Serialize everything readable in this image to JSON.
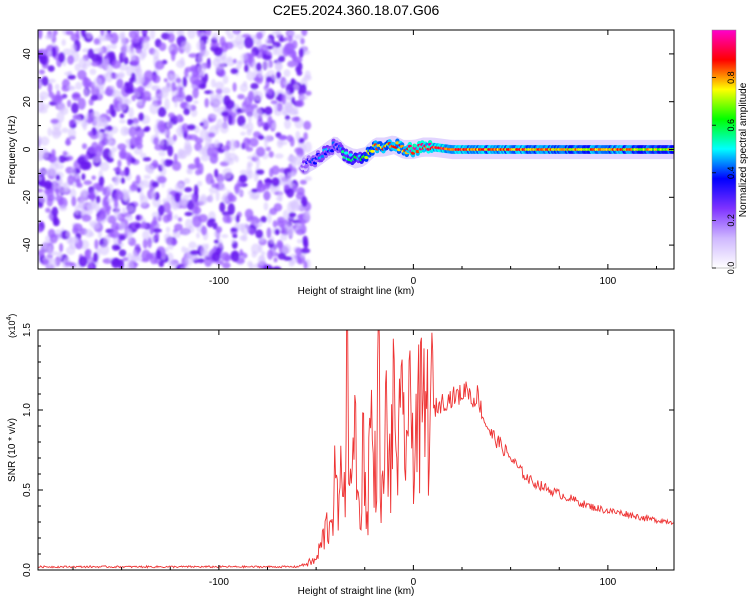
{
  "title": "C2E5.2024.360.18.07.G06",
  "chart_data": [
    {
      "type": "heatmap",
      "title": "C2E5.2024.360.18.07.G06",
      "xlabel": "Height of straight line (km)",
      "ylabel": "Frequency (Hz)",
      "xlim": [
        -193,
        134
      ],
      "ylim": [
        -50,
        50
      ],
      "x_ticks": [
        -100,
        0,
        100
      ],
      "x_tick_labels": [
        "-100",
        "0",
        "100"
      ],
      "y_ticks": [
        -40,
        -20,
        0,
        20,
        40
      ],
      "y_tick_labels": [
        "-40",
        "-20",
        "0",
        "20",
        "40"
      ],
      "colorbar": {
        "label": "Normalized spectral amplitude",
        "range": [
          0,
          1
        ],
        "ticks": [
          0.0,
          0.2,
          0.4,
          0.6,
          0.8
        ],
        "tick_labels": [
          "0.0",
          "0.2",
          "0.4",
          "0.6",
          "0.8"
        ],
        "colormap": [
          "#ffffff",
          "#cfb8ff",
          "#7f33ff",
          "#0000ff",
          "#00ffff",
          "#00ff00",
          "#ffff00",
          "#ff0000",
          "#ff00cc"
        ]
      },
      "regions": [
        {
          "description": "noise",
          "x_range": [
            -193,
            -57
          ],
          "level": 0.15
        },
        {
          "description": "signal ridge",
          "x_range": [
            -57,
            134
          ],
          "frequency_center": 0
        }
      ],
      "ridge": {
        "x": [
          -57,
          -50,
          -45,
          -40,
          -35,
          -30,
          -25,
          -20,
          -15,
          -10,
          -5,
          0,
          5,
          10,
          20,
          40,
          60,
          80,
          100,
          134
        ],
        "freq": [
          -7,
          -4,
          -1,
          2,
          -2,
          -4,
          -3,
          1,
          1,
          2,
          0,
          0,
          1,
          1,
          0,
          0,
          0,
          0,
          0,
          0
        ],
        "amplitude": [
          0.25,
          0.4,
          0.45,
          0.35,
          0.5,
          0.55,
          0.6,
          0.75,
          0.8,
          0.8,
          0.85,
          0.9,
          0.85,
          0.9,
          0.85,
          0.8,
          0.8,
          0.75,
          0.8,
          0.7
        ]
      }
    },
    {
      "type": "line",
      "xlabel": "Height of straight line (km)",
      "ylabel": "SNR (10 * v/v)",
      "y_multiplier_label": "(x10",
      "y_multiplier_exp": "4",
      "xlim": [
        -193,
        134
      ],
      "ylim": [
        0,
        1.5
      ],
      "x_ticks": [
        -100,
        0,
        100
      ],
      "x_tick_labels": [
        "-100",
        "0",
        "100"
      ],
      "y_ticks": [
        0.0,
        0.5,
        1.0,
        1.5
      ],
      "y_tick_labels": [
        "0.0",
        "0.5",
        "1.0",
        "1.5"
      ],
      "color": "#ee3333",
      "series": [
        {
          "x": [
            -193,
            -150,
            -100,
            -60,
            -50,
            -45,
            -42,
            -40,
            -38,
            -36,
            -35,
            -34,
            -32,
            -30,
            -28,
            -26,
            -25,
            -24,
            -22,
            -20,
            -18,
            -16,
            -14,
            -12,
            -10,
            -8,
            -5,
            0,
            5,
            10,
            15,
            20,
            25,
            28,
            30,
            33,
            36,
            40,
            45,
            50,
            55,
            60,
            70,
            80,
            90,
            100,
            110,
            120,
            134
          ],
          "y": [
            0.02,
            0.02,
            0.02,
            0.02,
            0.06,
            0.25,
            0.35,
            0.55,
            0.3,
            0.9,
            0.45,
            1.5,
            0.35,
            1.0,
            0.3,
            0.7,
            0.85,
            0.2,
            1.0,
            0.5,
            1.2,
            0.35,
            0.95,
            0.6,
            1.0,
            0.75,
            0.9,
            0.88,
            0.95,
            1.0,
            1.05,
            1.08,
            1.1,
            1.15,
            1.05,
            1.1,
            0.95,
            0.85,
            0.78,
            0.7,
            0.62,
            0.56,
            0.5,
            0.45,
            0.4,
            0.37,
            0.35,
            0.32,
            0.3
          ]
        }
      ]
    }
  ]
}
